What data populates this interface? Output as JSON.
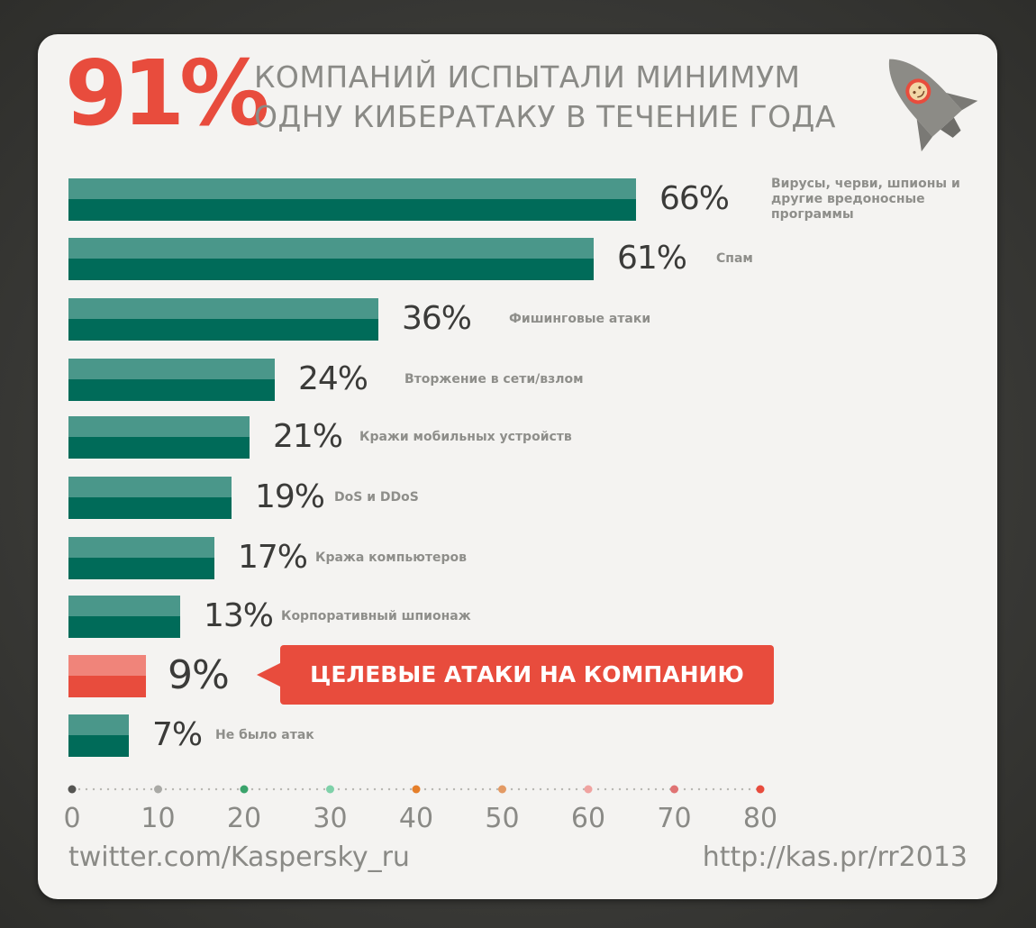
{
  "headline": {
    "percent": "91%",
    "line1": "КОМПАНИЙ ИСПЫТАЛИ МИНИМУМ",
    "line2": "ОДНУ КИБЕРАТАКУ В ТЕЧЕНИЕ ГОДА"
  },
  "callout": "ЦЕЛЕВЫЕ АТАКИ НА КОМПАНИЮ",
  "footer": {
    "left": "twitter.com/Kaspersky_ru",
    "right": "http://kas.pr/rr2013"
  },
  "colors": {
    "bar_top": "#4a978a",
    "bar_bottom": "#006b59",
    "highlight_top": "#f0847a",
    "highlight_bottom": "#e84c3d",
    "accent": "#e84c3d"
  },
  "axis_dot_colors": [
    "#555552",
    "#a9a9a5",
    "#3aa36b",
    "#7fd1a9",
    "#e57f2a",
    "#e39a64",
    "#f0a3a0",
    "#e07373",
    "#e84c3d"
  ],
  "icons": {
    "rocket": "rocket-icon"
  },
  "chart_data": {
    "type": "bar",
    "orientation": "horizontal",
    "categories": [
      "Вирусы, черви, шпионы и другие вредоносные программы",
      "Спам",
      "Фишинговые атаки",
      "Вторжение в сети/взлом",
      "Кражи мобильных устройств",
      "DoS и DDoS",
      "Кража компьютеров",
      "Корпоративный шпионаж",
      "",
      "Не было атак"
    ],
    "category_lines": [
      [
        "Вирусы, черви, шпионы и",
        "другие вредоносные",
        "программы"
      ],
      [
        "Спам"
      ],
      [
        "Фишинговые атаки"
      ],
      [
        "Вторжение в сети/взлом"
      ],
      [
        "Кражи мобильных устройств"
      ],
      [
        "DoS и DDoS"
      ],
      [
        "Кража компьютеров"
      ],
      [
        "Корпоративный шпионаж"
      ],
      [],
      [
        "Не было атак"
      ]
    ],
    "values": [
      66,
      61,
      36,
      24,
      21,
      19,
      17,
      13,
      9,
      7
    ],
    "value_labels": [
      "66%",
      "61%",
      "36%",
      "24%",
      "21%",
      "19%",
      "17%",
      "13%",
      "9%",
      "7%"
    ],
    "highlight_index": 8,
    "xlim": [
      0,
      80
    ],
    "xticks": [
      0,
      10,
      20,
      30,
      40,
      50,
      60,
      70,
      80
    ],
    "xtick_labels": [
      "0",
      "10",
      "20",
      "30",
      "40",
      "50",
      "60",
      "70",
      "80"
    ],
    "grid": false,
    "legend": "none"
  }
}
